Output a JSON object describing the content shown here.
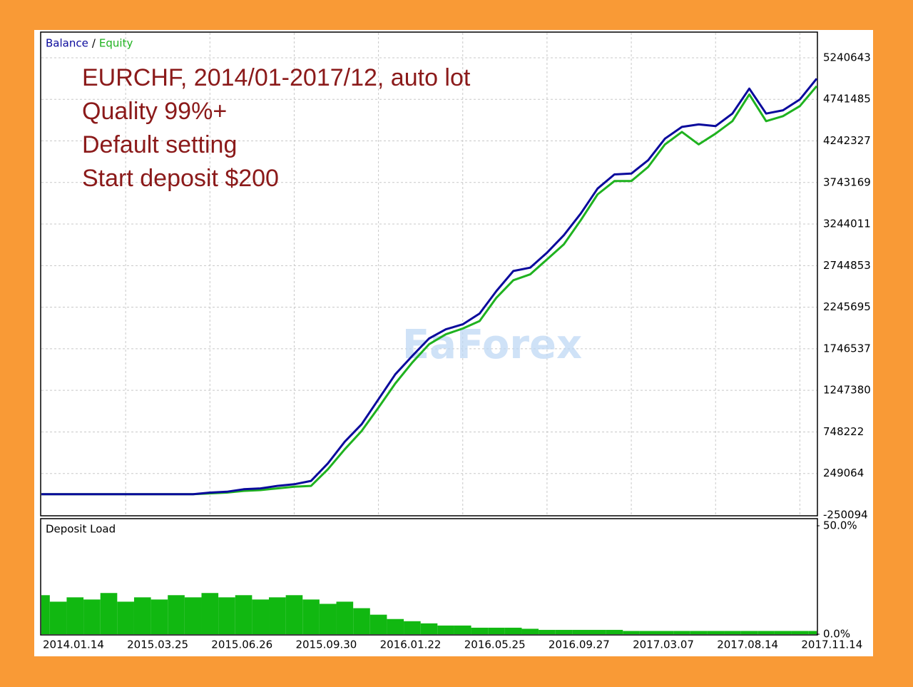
{
  "chart_data": [
    {
      "type": "line",
      "legend_separator": "/",
      "annotations": [
        "EURCHF, 2014/01-2017/12, auto lot",
        "Quality 99%+",
        "Default setting",
        "Start deposit $200"
      ],
      "watermark": "EaForex",
      "ylim": [
        -250094,
        5540000
      ],
      "yticks": [
        -250094,
        249064,
        748222,
        1247380,
        1746537,
        2245695,
        2744853,
        3244011,
        3743169,
        4242327,
        4741485,
        5240643
      ],
      "grid": true,
      "series": [
        {
          "name": "Balance",
          "color": "#0a0a9c",
          "values": [
            200,
            200,
            200,
            200,
            200,
            200,
            200,
            200,
            200,
            200,
            20000,
            30000,
            60000,
            70000,
            100000,
            120000,
            160000,
            370000,
            630000,
            840000,
            1140000,
            1440000,
            1660000,
            1870000,
            1980000,
            2040000,
            2170000,
            2440000,
            2680000,
            2720000,
            2900000,
            3110000,
            3370000,
            3670000,
            3840000,
            3850000,
            4010000,
            4270000,
            4410000,
            4440000,
            4420000,
            4570000,
            4870000,
            4570000,
            4610000,
            4740000,
            4990000
          ]
        },
        {
          "name": "Equity",
          "color": "#1fb21f",
          "values": [
            200,
            200,
            200,
            200,
            200,
            200,
            200,
            200,
            200,
            200,
            10000,
            20000,
            40000,
            50000,
            70000,
            90000,
            100000,
            300000,
            540000,
            760000,
            1040000,
            1330000,
            1580000,
            1800000,
            1920000,
            1990000,
            2080000,
            2360000,
            2570000,
            2640000,
            2820000,
            3000000,
            3290000,
            3600000,
            3760000,
            3760000,
            3930000,
            4200000,
            4350000,
            4200000,
            4330000,
            4480000,
            4800000,
            4480000,
            4540000,
            4660000,
            4900000
          ]
        }
      ]
    },
    {
      "type": "bar",
      "title": "Deposit Load",
      "color": "#11b811",
      "categories": [
        "2014.01.14",
        null,
        null,
        null,
        null,
        "2015.03.25",
        null,
        null,
        null,
        null,
        "2015.06.26",
        null,
        null,
        null,
        null,
        "2015.09.30",
        null,
        null,
        null,
        null,
        "2016.01.22",
        null,
        null,
        null,
        null,
        "2016.05.25",
        null,
        null,
        null,
        null,
        "2016.09.27",
        null,
        null,
        null,
        null,
        "2017.03.07",
        null,
        null,
        null,
        null,
        "2017.08.14",
        null,
        null,
        null,
        null,
        "2017.11.14",
        null
      ],
      "values": [
        18,
        15,
        17,
        16,
        19,
        15,
        17,
        16,
        18,
        17,
        19,
        17,
        18,
        16,
        17,
        18,
        16,
        14,
        15,
        12,
        9,
        7,
        6,
        5,
        4,
        4,
        3,
        3,
        3,
        2.5,
        2,
        2,
        2,
        2,
        2,
        1.5,
        1.5,
        1.5,
        1.5,
        1.5,
        1.5,
        1.5,
        1.5,
        1.5,
        1.5,
        1.5,
        1.5
      ],
      "ylim": [
        0,
        50
      ],
      "yticks": [
        {
          "value": 0,
          "label": "0.0%"
        },
        {
          "value": 50,
          "label": "50.0%"
        }
      ]
    }
  ]
}
